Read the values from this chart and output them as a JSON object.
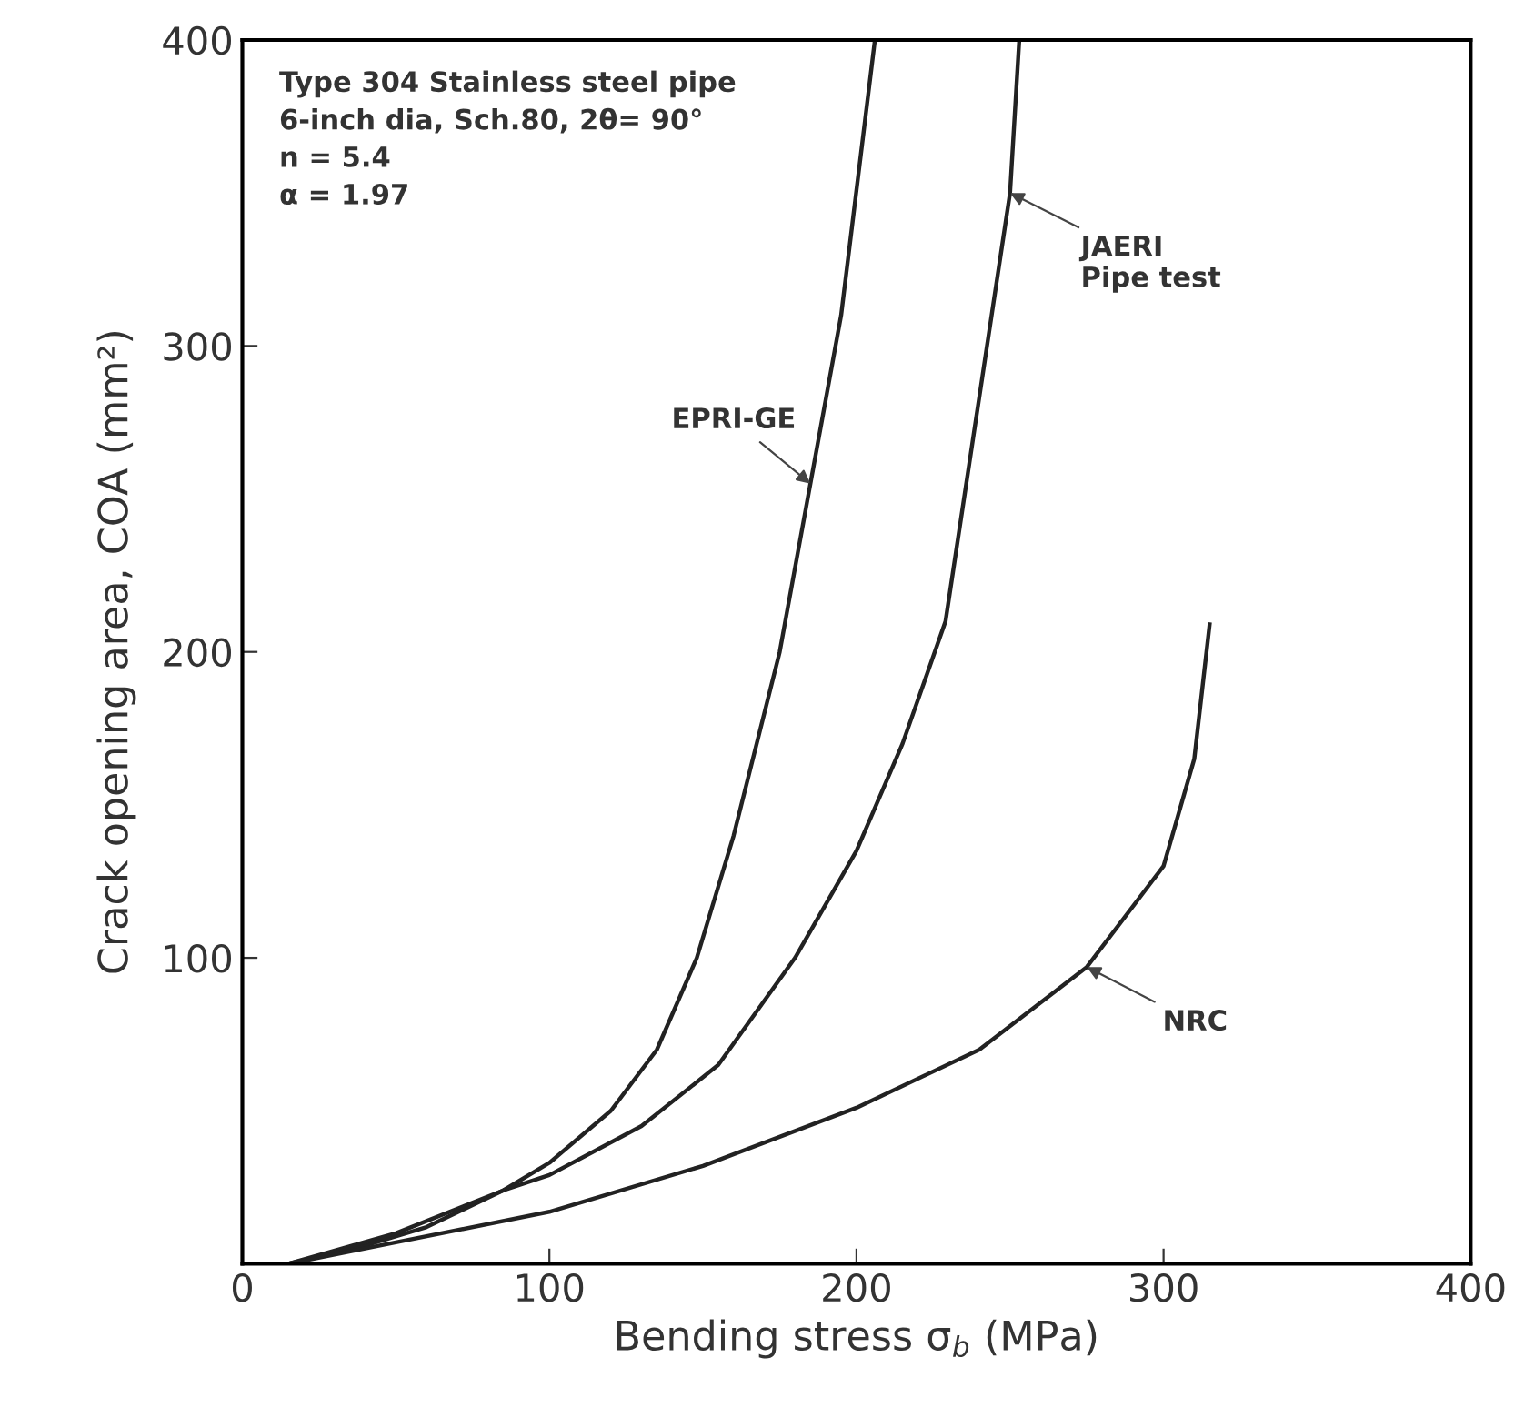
{
  "chart_data": {
    "type": "line",
    "xlabel": "Bending stress σ$_{b}$ (MPa)",
    "ylabel": "Crack opening area, COA (mm²)",
    "xlim": [
      0,
      400
    ],
    "ylim": [
      0,
      400
    ],
    "xticks": [
      0,
      100,
      200,
      300,
      400
    ],
    "yticks": [
      {
        "value": 0,
        "label": null
      },
      100,
      200,
      300,
      400
    ],
    "grid": false,
    "marker": "none",
    "line_style": "solid",
    "series": [
      {
        "color": "#222222",
        "x": [
          15,
          40,
          60,
          85,
          100,
          120,
          135,
          148,
          160,
          175,
          185,
          195,
          206
        ],
        "values": [
          0,
          6,
          12,
          24,
          33,
          50,
          70,
          100,
          140,
          200,
          255,
          310,
          400
        ]
      },
      {
        "color": "#222222",
        "x": [
          15,
          50,
          85,
          100,
          130,
          155,
          180,
          200,
          215,
          229,
          241,
          250,
          253
        ],
        "values": [
          0,
          10,
          24,
          29,
          45,
          65,
          100,
          135,
          170,
          210,
          290,
          350,
          400
        ]
      },
      {
        "color": "#222222",
        "x": [
          15,
          50,
          100,
          150,
          200,
          240,
          275,
          300,
          310,
          315
        ],
        "values": [
          0,
          7,
          17,
          32,
          51,
          70,
          97,
          130,
          165,
          209
        ]
      }
    ],
    "annotations": [
      "Type 304 Stainless steel pipe\n6-inch dia, Sch.80, 2θ= 90°\nn = 5.4\nα = 1.97",
      {
        "text": "EPRI-GE",
        "x": 185,
        "y": 255
      },
      {
        "text": "JAERI\nPipe test",
        "x": 250,
        "y": 350
      },
      {
        "text": "NRC",
        "x": 275,
        "y": 97
      }
    ]
  }
}
